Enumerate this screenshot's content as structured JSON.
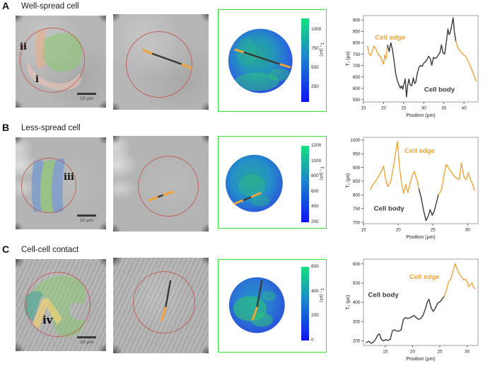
{
  "colors": {
    "edge": "#F2A43C",
    "body": "#3A3A3A",
    "roi_circle": "#C4544F",
    "map_border": "#35E235",
    "overlay_green": "#86C96B",
    "overlay_peach": "#F0A97E",
    "overlay_pink": "#F2C7B8",
    "overlay_blue": "#5C8FD6",
    "overlay_teal": "#3FA98E",
    "overlay_yellow": "#F5D372",
    "colorbar_bottom": "#0F14F5",
    "colorbar_top": "#14E07E"
  },
  "rows": [
    {
      "panel_label": "A",
      "title": "Well-spread cell",
      "microscopy": {
        "region_labels": [
          "ii",
          "i"
        ],
        "scalebar_label": "10 µm"
      },
      "heatmap": {
        "colorbar_label": "T₁ (µs)",
        "ticks": [
          1000,
          750,
          500,
          250
        ],
        "range": [
          50,
          1150
        ]
      }
    },
    {
      "panel_label": "B",
      "title": "Less-spread cell",
      "microscopy": {
        "region_labels": [
          "iii"
        ],
        "scalebar_label": "10 µm"
      },
      "heatmap": {
        "colorbar_label": "T₁ (µs)",
        "ticks": [
          1200,
          1000,
          800,
          600,
          400,
          200
        ],
        "range": [
          200,
          1200
        ]
      }
    },
    {
      "panel_label": "C",
      "title": "Cell-cell contact",
      "microscopy": {
        "region_labels": [
          "iv"
        ],
        "scalebar_label": "10 µm"
      },
      "heatmap": {
        "colorbar_label": "T₁ (µs)",
        "ticks": [
          600,
          400,
          200,
          0
        ],
        "range": [
          0,
          600
        ]
      }
    }
  ],
  "chart_data": [
    {
      "type": "line",
      "xlabel": "Position (µm)",
      "ylabel": "T₁ (µs)",
      "xlim": [
        15,
        43.5
      ],
      "ylim": [
        540,
        920
      ],
      "xticks": [
        15,
        20,
        25,
        30,
        35,
        40
      ],
      "yticks": [
        550,
        600,
        650,
        700,
        750,
        800,
        850,
        900
      ],
      "series": [
        {
          "name": "Cell edge",
          "role": "edge",
          "points": [
            [
              16,
              785
            ],
            [
              16.4,
              752
            ],
            [
              16.8,
              745
            ],
            [
              17.2,
              764
            ],
            [
              17.6,
              786
            ],
            [
              18,
              776
            ],
            [
              18.4,
              760
            ],
            [
              18.8,
              746
            ],
            [
              19.2,
              741
            ],
            [
              19.6,
              722
            ],
            [
              20,
              706
            ],
            [
              20.3,
              746
            ],
            [
              20.6,
              728
            ],
            [
              21,
              790
            ]
          ]
        },
        {
          "name": "Cell body",
          "role": "body",
          "points": [
            [
              21,
              790
            ],
            [
              21.4,
              762
            ],
            [
              21.8,
              800
            ],
            [
              22.2,
              772
            ],
            [
              22.6,
              722
            ],
            [
              23,
              666
            ],
            [
              23.4,
              636
            ],
            [
              23.8,
              616
            ],
            [
              24.2,
              600
            ],
            [
              24.5,
              611
            ],
            [
              24.8,
              596
            ],
            [
              25.1,
              621
            ],
            [
              25.4,
              641
            ],
            [
              25.7,
              562
            ],
            [
              26,
              612
            ],
            [
              26.3,
              641
            ],
            [
              26.6,
              616
            ],
            [
              27,
              611
            ],
            [
              27.4,
              646
            ],
            [
              27.7,
              621
            ],
            [
              28,
              626
            ],
            [
              28.4,
              666
            ],
            [
              28.8,
              691
            ],
            [
              29.2,
              701
            ],
            [
              29.6,
              696
            ],
            [
              30,
              711
            ],
            [
              30.4,
              716
            ],
            [
              30.8,
              726
            ],
            [
              31.2,
              741
            ],
            [
              31.6,
              731
            ],
            [
              32,
              701
            ],
            [
              32.4,
              736
            ],
            [
              32.8,
              731
            ],
            [
              33.2,
              736
            ],
            [
              33.6,
              746
            ],
            [
              34,
              756
            ],
            [
              34.4,
              791
            ],
            [
              34.8,
              756
            ],
            [
              35.2,
              751
            ],
            [
              35.6,
              801
            ],
            [
              36,
              861
            ],
            [
              36.3,
              836
            ],
            [
              36.6,
              846
            ],
            [
              37,
              881
            ],
            [
              37.3,
              911
            ],
            [
              37.6,
              851
            ],
            [
              38,
              806
            ]
          ]
        },
        {
          "name": "Cell edge",
          "role": "edge",
          "points": [
            [
              38,
              806
            ],
            [
              38.5,
              776
            ],
            [
              39,
              766
            ],
            [
              39.5,
              756
            ],
            [
              40,
              746
            ],
            [
              40.5,
              739
            ],
            [
              41,
              721
            ],
            [
              41.5,
              701
            ],
            [
              42,
              679
            ],
            [
              42.5,
              656
            ],
            [
              43,
              631
            ]
          ]
        }
      ],
      "annotations": [
        {
          "text": "Cell edge",
          "role": "edge",
          "fx": 0.1,
          "fy": 0.28
        },
        {
          "text": "Cell body",
          "role": "body",
          "fx": 0.53,
          "fy": 0.88
        }
      ]
    },
    {
      "type": "line",
      "xlabel": "Position (µm)",
      "ylabel": "T₁ (µs)",
      "xlim": [
        15,
        31.5
      ],
      "ylim": [
        695,
        1010
      ],
      "xticks": [
        15,
        20,
        25,
        30
      ],
      "yticks": [
        700,
        750,
        800,
        850,
        900,
        950,
        1000
      ],
      "series": [
        {
          "name": "Cell edge",
          "role": "edge",
          "points": [
            [
              16,
              820
            ],
            [
              16.4,
              838
            ],
            [
              16.8,
              852
            ],
            [
              17.2,
              868
            ],
            [
              17.6,
              888
            ],
            [
              17.9,
              905
            ],
            [
              18.2,
              856
            ],
            [
              18.5,
              830
            ],
            [
              18.9,
              846
            ],
            [
              19.3,
              900
            ],
            [
              19.6,
              950
            ],
            [
              19.9,
              995
            ],
            [
              20.2,
              900
            ],
            [
              20.5,
              841
            ],
            [
              20.8,
              806
            ],
            [
              21.1,
              838
            ],
            [
              21.4,
              808
            ],
            [
              21.7,
              841
            ],
            [
              22,
              868
            ],
            [
              22.3,
              886
            ],
            [
              22.7,
              856
            ],
            [
              23,
              821
            ]
          ]
        },
        {
          "name": "Cell body",
          "role": "body",
          "points": [
            [
              23,
              821
            ],
            [
              23.3,
              791
            ],
            [
              23.6,
              751
            ],
            [
              24,
              706
            ],
            [
              24.3,
              721
            ],
            [
              24.6,
              746
            ],
            [
              24.9,
              726
            ],
            [
              25.2,
              741
            ],
            [
              25.5,
              771
            ],
            [
              25.8,
              801
            ]
          ]
        },
        {
          "name": "Cell edge",
          "role": "edge",
          "points": [
            [
              25.8,
              801
            ],
            [
              26.2,
              816
            ],
            [
              26.6,
              871
            ],
            [
              26.9,
              911
            ],
            [
              27.3,
              896
            ],
            [
              27.7,
              881
            ],
            [
              28,
              871
            ],
            [
              28.4,
              861
            ],
            [
              28.8,
              856
            ],
            [
              29.1,
              916
            ],
            [
              29.5,
              862
            ],
            [
              29.8,
              856
            ],
            [
              30.1,
              881
            ],
            [
              30.4,
              856
            ],
            [
              30.7,
              841
            ],
            [
              31,
              816
            ]
          ]
        }
      ],
      "annotations": [
        {
          "text": "Cell edge",
          "role": "edge",
          "fx": 0.36,
          "fy": 0.18
        },
        {
          "text": "Cell body",
          "role": "body",
          "fx": 0.09,
          "fy": 0.85
        }
      ]
    },
    {
      "type": "line",
      "xlabel": "Position (µm)",
      "ylabel": "T₁ (µs)",
      "xlim": [
        11,
        32
      ],
      "ylim": [
        175,
        625
      ],
      "xticks": [
        15,
        20,
        25,
        30
      ],
      "yticks": [
        200,
        300,
        400,
        500,
        600
      ],
      "series": [
        {
          "name": "Cell body",
          "role": "body",
          "points": [
            [
              11.5,
              190
            ],
            [
              12,
              197
            ],
            [
              12.4,
              186
            ],
            [
              12.8,
              192
            ],
            [
              13.2,
              206
            ],
            [
              13.6,
              229
            ],
            [
              13.9,
              236
            ],
            [
              14.3,
              206
            ],
            [
              14.7,
              199
            ],
            [
              15.1,
              206
            ],
            [
              15.5,
              201
            ],
            [
              15.9,
              207
            ],
            [
              16.3,
              251
            ],
            [
              16.7,
              257
            ],
            [
              17.1,
              250
            ],
            [
              17.5,
              250
            ],
            [
              17.9,
              256
            ],
            [
              18.3,
              309
            ],
            [
              18.7,
              321
            ],
            [
              19.1,
              315
            ],
            [
              19.5,
              319
            ],
            [
              19.9,
              326
            ],
            [
              20.3,
              331
            ],
            [
              20.7,
              319
            ],
            [
              21.1,
              311
            ],
            [
              21.5,
              316
            ],
            [
              21.9,
              331
            ],
            [
              22.3,
              362
            ],
            [
              22.7,
              401
            ],
            [
              23,
              416
            ],
            [
              23.4,
              371
            ],
            [
              23.8,
              352
            ],
            [
              24.2,
              371
            ],
            [
              24.6,
              396
            ],
            [
              25,
              402
            ],
            [
              25.4,
              416
            ],
            [
              25.8,
              431
            ]
          ]
        },
        {
          "name": "Cell edge",
          "role": "edge",
          "points": [
            [
              25.8,
              431
            ],
            [
              26.2,
              461
            ],
            [
              26.6,
              506
            ],
            [
              27,
              521
            ],
            [
              27.4,
              561
            ],
            [
              27.8,
              601
            ],
            [
              28.2,
              571
            ],
            [
              28.6,
              546
            ],
            [
              29,
              531
            ],
            [
              29.4,
              516
            ],
            [
              29.7,
              521
            ],
            [
              30,
              506
            ],
            [
              30.3,
              481
            ],
            [
              30.6,
              491
            ],
            [
              30.9,
              501
            ],
            [
              31.2,
              476
            ],
            [
              31.5,
              471
            ]
          ]
        }
      ],
      "annotations": [
        {
          "text": "Cell edge",
          "role": "edge",
          "fx": 0.4,
          "fy": 0.23
        },
        {
          "text": "Cell body",
          "role": "body",
          "fx": 0.04,
          "fy": 0.44
        }
      ]
    }
  ]
}
